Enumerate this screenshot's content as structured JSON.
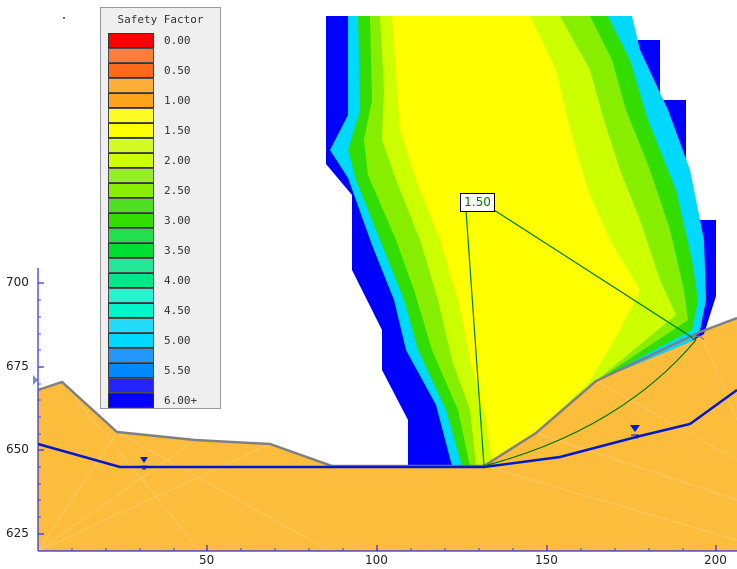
{
  "legend": {
    "title": "Safety Factor",
    "items": [
      {
        "label": "0.00",
        "color": "#ff0000"
      },
      {
        "label": "0.50",
        "color": "#ff6a1a"
      },
      {
        "label": "1.00",
        "color": "#ffa31a"
      },
      {
        "label": "1.50",
        "color": "#ffff00"
      },
      {
        "label": "2.00",
        "color": "#ccff00"
      },
      {
        "label": "2.50",
        "color": "#88ee00"
      },
      {
        "label": "3.00",
        "color": "#33dd00"
      },
      {
        "label": "3.50",
        "color": "#00dd33"
      },
      {
        "label": "4.00",
        "color": "#00e688"
      },
      {
        "label": "4.50",
        "color": "#00f5c8"
      },
      {
        "label": "5.00",
        "color": "#00d9ff"
      },
      {
        "label": "5.50",
        "color": "#0088ff"
      },
      {
        "label": "6.00+",
        "color": "#0000ff"
      }
    ]
  },
  "critical_surface": {
    "safety_factor": "1.50"
  },
  "axes": {
    "x_ticks": [
      "50",
      "100",
      "150",
      "200"
    ],
    "y_ticks": [
      "700",
      "675",
      "650",
      "625"
    ]
  },
  "colors": {
    "soil": "#fdbd3c",
    "slope_outline": "#808080",
    "water_table": "#0018cc",
    "slip_lines": "#007a00",
    "grid_blue": "#0000ff",
    "grid_yellow": "#ffff00"
  },
  "icons": [
    "water-table-marker-icon",
    "water-table-marker-icon",
    "water-table-marker-icon"
  ]
}
